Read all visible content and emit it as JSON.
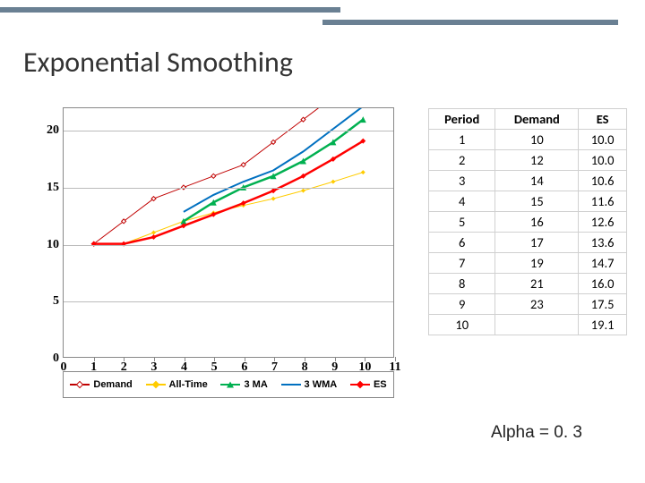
{
  "title": "Exponential Smoothing",
  "alpha_text": "Alpha = 0. 3",
  "chart": {
    "type": "line",
    "xlim": [
      0,
      11
    ],
    "ylim": [
      0,
      22
    ],
    "yticks": [
      0,
      5,
      10,
      15,
      20
    ],
    "xticks": [
      0,
      1,
      2,
      3,
      4,
      5,
      6,
      7,
      8,
      9,
      10,
      11
    ],
    "grid_color": "#bbbbbb",
    "border_color": "#888888",
    "background_color": "#ffffff",
    "tick_fontsize": 14,
    "tick_fontweight": "bold",
    "series": [
      {
        "name": "Demand",
        "color": "#c00000",
        "marker": "diamond-open",
        "marker_size": 5,
        "line_width": 1,
        "x": [
          1,
          2,
          3,
          4,
          5,
          6,
          7,
          8,
          9
        ],
        "y": [
          10,
          12,
          14,
          15,
          16,
          17,
          19,
          21,
          23
        ]
      },
      {
        "name": "All-Time",
        "color": "#ffcc00",
        "marker": "diamond",
        "marker_size": 5,
        "line_width": 1,
        "x": [
          2,
          3,
          4,
          5,
          6,
          7,
          8,
          9,
          10
        ],
        "y": [
          10,
          11,
          12,
          12.75,
          13.4,
          14,
          14.71,
          15.5,
          16.33
        ]
      },
      {
        "name": "3 MA",
        "color": "#00b050",
        "marker": "triangle",
        "marker_size": 7,
        "line_width": 2.5,
        "x": [
          4,
          5,
          6,
          7,
          8,
          9,
          10
        ],
        "y": [
          12,
          13.67,
          15,
          16,
          17.33,
          19,
          21
        ]
      },
      {
        "name": "3 WMA",
        "color": "#0070c0",
        "marker": "none",
        "marker_size": 0,
        "line_width": 2,
        "x": [
          4,
          5,
          6,
          7,
          8,
          9,
          10
        ],
        "y": [
          12.83,
          14.33,
          15.5,
          16.5,
          18.17,
          20.17,
          22.17
        ]
      },
      {
        "name": "ES",
        "color": "#ff0000",
        "marker": "diamond",
        "marker_size": 6,
        "line_width": 2.5,
        "x": [
          1,
          2,
          3,
          4,
          5,
          6,
          7,
          8,
          9,
          10
        ],
        "y": [
          10.0,
          10.0,
          10.6,
          11.6,
          12.6,
          13.6,
          14.7,
          16.0,
          17.5,
          19.1
        ]
      }
    ],
    "legend": {
      "position": "bottom",
      "items": [
        {
          "label": "Demand",
          "color": "#c00000",
          "marker": "diamond-open"
        },
        {
          "label": "All-Time",
          "color": "#ffcc00",
          "marker": "diamond"
        },
        {
          "label": "3 MA",
          "color": "#00b050",
          "marker": "triangle"
        },
        {
          "label": "3 WMA",
          "color": "#0070c0",
          "marker": "none"
        },
        {
          "label": "ES",
          "color": "#ff0000",
          "marker": "diamond"
        }
      ]
    }
  },
  "table": {
    "columns": [
      "Period",
      "Demand",
      "ES"
    ],
    "rows": [
      [
        "1",
        "10",
        "10.0"
      ],
      [
        "2",
        "12",
        "10.0"
      ],
      [
        "3",
        "14",
        "10.6"
      ],
      [
        "4",
        "15",
        "11.6"
      ],
      [
        "5",
        "16",
        "12.6"
      ],
      [
        "6",
        "17",
        "13.6"
      ],
      [
        "7",
        "19",
        "14.7"
      ],
      [
        "8",
        "21",
        "16.0"
      ],
      [
        "9",
        "23",
        "17.5"
      ],
      [
        "10",
        "",
        "19.1"
      ]
    ],
    "header_fontweight": "bold",
    "border_color": "#d0d0d0",
    "cell_bg": "#ffffff"
  },
  "accent": {
    "color": "#6a8093"
  }
}
